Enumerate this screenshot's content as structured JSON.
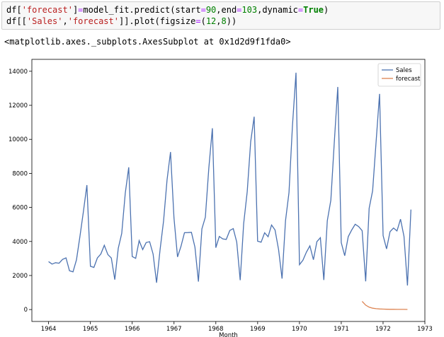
{
  "code": {
    "line1": {
      "a": "df[",
      "b": "'forecast'",
      "c": "]",
      "d": "=",
      "e": "model_fit.predict(start",
      "f": "=",
      "g": "90",
      "h": ",end",
      "i": "=",
      "j": "103",
      "k": ",dynamic",
      "l": "=",
      "m": "True",
      "n": ")"
    },
    "line2": {
      "a": "df[[",
      "b": "'Sales'",
      "c": ",",
      "d": "'forecast'",
      "e": "]].plot(figsize",
      "f": "=",
      "g": "(",
      "h": "12",
      "i": ",",
      "j": "8",
      "k": "))"
    }
  },
  "output_repr": "<matplotlib.axes._subplots.AxesSubplot at 0x1d2d9f1fda0>",
  "chart_data": {
    "type": "line",
    "xlabel": "Month",
    "ylabel": "",
    "xlim": [
      1963.6,
      1973.0
    ],
    "ylim": [
      -700,
      14700
    ],
    "x_ticks": [
      "1964",
      "1965",
      "1966",
      "1967",
      "1968",
      "1969",
      "1970",
      "1971",
      "1972",
      "1973"
    ],
    "y_ticks": [
      "0",
      "2000",
      "4000",
      "6000",
      "8000",
      "10000",
      "12000",
      "14000"
    ],
    "legend_position": "top-right",
    "grid": false,
    "series": [
      {
        "name": "Sales",
        "color": "#4c72b0",
        "x_start": "1964-01",
        "step": "month",
        "values": [
          2815,
          2672,
          2755,
          2721,
          2946,
          3036,
          2282,
          2212,
          2922,
          4301,
          5764,
          7312,
          2541,
          2475,
          3031,
          3266,
          3776,
          3230,
          3028,
          1759,
          3595,
          4474,
          6838,
          8357,
          3113,
          3006,
          4047,
          3523,
          3937,
          3986,
          3260,
          1573,
          3528,
          5211,
          7614,
          9254,
          5375,
          3088,
          3718,
          4514,
          4520,
          4539,
          3663,
          1643,
          4739,
          5428,
          8314,
          10651,
          3633,
          4292,
          4154,
          4121,
          4647,
          4753,
          3965,
          1723,
          5048,
          6922,
          9858,
          11331,
          4016,
          3957,
          4510,
          4276,
          4968,
          4677,
          3523,
          1821,
          5222,
          6872,
          10803,
          13916,
          2639,
          2899,
          3370,
          3740,
          2927,
          3986,
          4217,
          1738,
          5221,
          6424,
          9842,
          13076,
          3934,
          3162,
          4286,
          4676,
          5010,
          4874,
          4633,
          1659,
          5951,
          6981,
          9851,
          12670,
          4348,
          3564,
          4577,
          4788,
          4618,
          5312,
          4298,
          1413,
          5877
        ]
      },
      {
        "name": "forecast",
        "color": "#dd8452",
        "x_start": "1971-07",
        "step": "month",
        "values": [
          480,
          260,
          140,
          80,
          50,
          35,
          25,
          20,
          15,
          12,
          10,
          9,
          8,
          7
        ]
      }
    ]
  }
}
